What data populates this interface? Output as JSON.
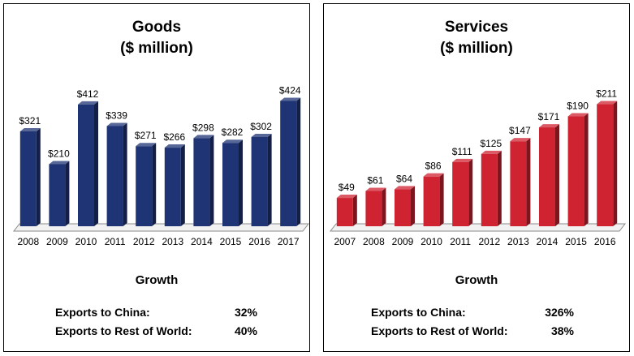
{
  "chart_data": [
    {
      "type": "bar",
      "title": "Goods",
      "subtitle": "($ million)",
      "categories": [
        "2008",
        "2009",
        "2010",
        "2011",
        "2012",
        "2013",
        "2014",
        "2015",
        "2016",
        "2017"
      ],
      "values": [
        321,
        210,
        412,
        339,
        271,
        266,
        298,
        282,
        302,
        424
      ],
      "data_labels": [
        "$321",
        "$210",
        "$412",
        "$339",
        "$271",
        "$266",
        "$298",
        "$282",
        "$302",
        "$424"
      ],
      "ylim": [
        0,
        450
      ],
      "color": "#1f3474",
      "grid": false,
      "growth": {
        "heading": "Growth",
        "rows": [
          {
            "label": "Exports to China:",
            "value": "32%"
          },
          {
            "label": "Exports to Rest of World:",
            "value": "40%"
          }
        ]
      }
    },
    {
      "type": "bar",
      "title": "Services",
      "subtitle": "($ million)",
      "categories": [
        "2007",
        "2008",
        "2009",
        "2010",
        "2011",
        "2012",
        "2013",
        "2014",
        "2015",
        "2016"
      ],
      "values": [
        49,
        61,
        64,
        86,
        111,
        125,
        147,
        171,
        190,
        211
      ],
      "data_labels": [
        "$49",
        "$61",
        "$64",
        "$86",
        "$111",
        "$125",
        "$147",
        "$171",
        "$190",
        "$211"
      ],
      "ylim": [
        0,
        230
      ],
      "color": "#cf2332",
      "grid": false,
      "growth": {
        "heading": "Growth",
        "rows": [
          {
            "label": "Exports to China:",
            "value": "326%"
          },
          {
            "label": "Exports to Rest of World:",
            "value": "38%"
          }
        ]
      }
    }
  ]
}
